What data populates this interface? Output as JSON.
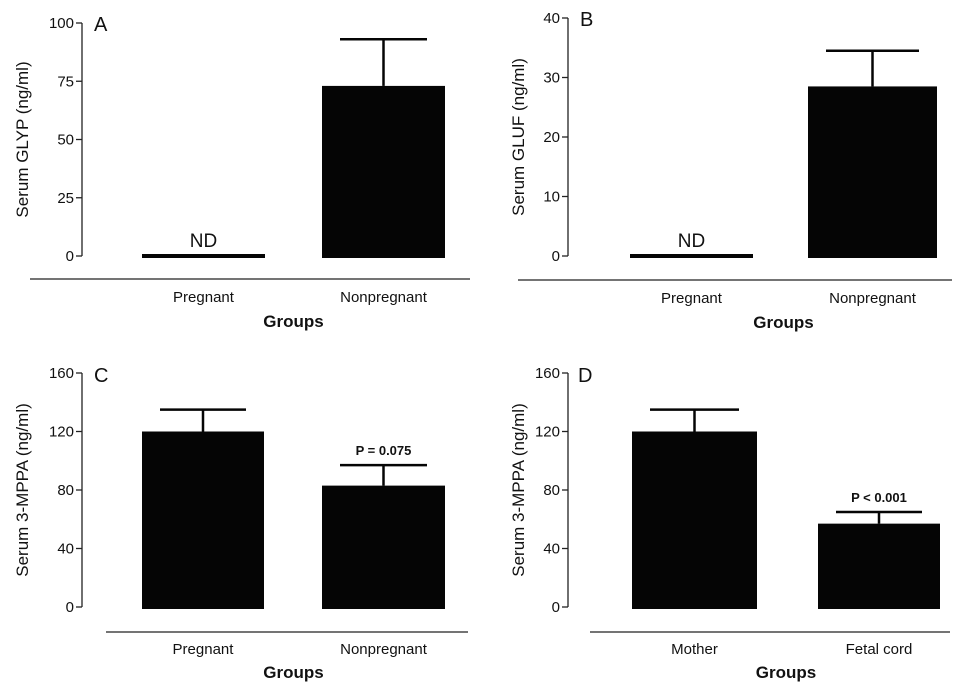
{
  "chart_data": [
    {
      "type": "bar",
      "panel": "A",
      "categories": [
        "Pregnant",
        "Nonpregnant"
      ],
      "values": [
        0,
        73
      ],
      "errors": [
        0,
        20
      ],
      "value_labels": [
        "ND",
        ""
      ],
      "ylabel": "Serum GLYP (ng/ml)",
      "xlabel": "Groups",
      "ylim": [
        0,
        100
      ],
      "yticks": [
        "0",
        "25",
        "50",
        "75",
        "100"
      ]
    },
    {
      "type": "bar",
      "panel": "B",
      "categories": [
        "Pregnant",
        "Nonpregnant"
      ],
      "values": [
        0,
        28.5
      ],
      "errors": [
        0,
        6
      ],
      "value_labels": [
        "ND",
        ""
      ],
      "ylabel": "Serum GLUF (ng/ml)",
      "xlabel": "Groups",
      "ylim": [
        0,
        40
      ],
      "yticks": [
        "0",
        "10",
        "20",
        "30",
        "40"
      ]
    },
    {
      "type": "bar",
      "panel": "C",
      "categories": [
        "Pregnant",
        "Nonpregnant"
      ],
      "values": [
        120,
        83
      ],
      "errors": [
        15,
        14
      ],
      "value_labels": [
        "",
        "P = 0.075"
      ],
      "ylabel": "Serum 3-MPPA (ng/ml)",
      "xlabel": "Groups",
      "ylim": [
        0,
        160
      ],
      "yticks": [
        "0",
        "40",
        "80",
        "120",
        "160"
      ]
    },
    {
      "type": "bar",
      "panel": "D",
      "categories": [
        "Mother",
        "Fetal cord"
      ],
      "values": [
        120,
        57
      ],
      "errors": [
        15,
        8
      ],
      "value_labels": [
        "",
        "P < 0.001"
      ],
      "ylabel": "Serum 3-MPPA (ng/ml)",
      "xlabel": "Groups",
      "ylim": [
        0,
        160
      ],
      "yticks": [
        "0",
        "40",
        "80",
        "120",
        "160"
      ]
    }
  ],
  "colors": {
    "bar": "#050505",
    "axis": "#222222"
  }
}
